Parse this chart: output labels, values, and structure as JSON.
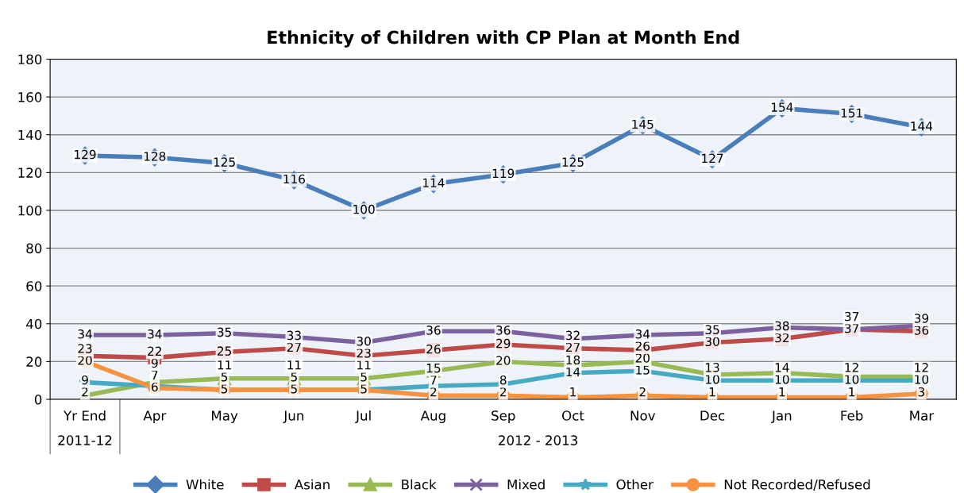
{
  "chart_data": {
    "type": "line",
    "title": "Ethnicity of Children with CP Plan at Month End",
    "categories": [
      "Yr End",
      "Apr",
      "May",
      "Jun",
      "Jul",
      "Aug",
      "Sep",
      "Oct",
      "Nov",
      "Dec",
      "Jan",
      "Feb",
      "Mar"
    ],
    "series": [
      {
        "name": "White",
        "color": "#4a7ebb",
        "marker": "diamond",
        "values": [
          129,
          128,
          125,
          116,
          100,
          114,
          119,
          125,
          145,
          127,
          154,
          151,
          144
        ]
      },
      {
        "name": "Asian",
        "color": "#be4b48",
        "marker": "square",
        "values": [
          23,
          22,
          25,
          27,
          23,
          26,
          29,
          27,
          26,
          30,
          32,
          37,
          36
        ]
      },
      {
        "name": "Black",
        "color": "#98b954",
        "marker": "triangle",
        "values": [
          2,
          9,
          11,
          11,
          11,
          15,
          20,
          18,
          20,
          13,
          14,
          12,
          12
        ]
      },
      {
        "name": "Mixed",
        "color": "#7d60a0",
        "marker": "cross",
        "values": [
          34,
          34,
          35,
          33,
          30,
          36,
          36,
          32,
          34,
          35,
          38,
          37,
          39
        ]
      },
      {
        "name": "Other",
        "color": "#46aac5",
        "marker": "star",
        "values": [
          9,
          7,
          5,
          5,
          5,
          7,
          8,
          14,
          15,
          10,
          10,
          10,
          10
        ]
      },
      {
        "name": "Not Recorded/Refused",
        "color": "#f69240",
        "marker": "circle",
        "values": [
          20,
          6,
          5,
          5,
          5,
          2,
          2,
          1,
          2,
          1,
          1,
          1,
          3
        ]
      }
    ],
    "annotations": [
      "2011-12",
      "2012 - 2013"
    ],
    "ylim": [
      0,
      180
    ],
    "yticks": [
      0,
      20,
      40,
      60,
      80,
      100,
      120,
      140,
      160,
      180
    ],
    "grid": "y",
    "legend": "bottom",
    "data_labels": true,
    "line_style": "solid"
  }
}
